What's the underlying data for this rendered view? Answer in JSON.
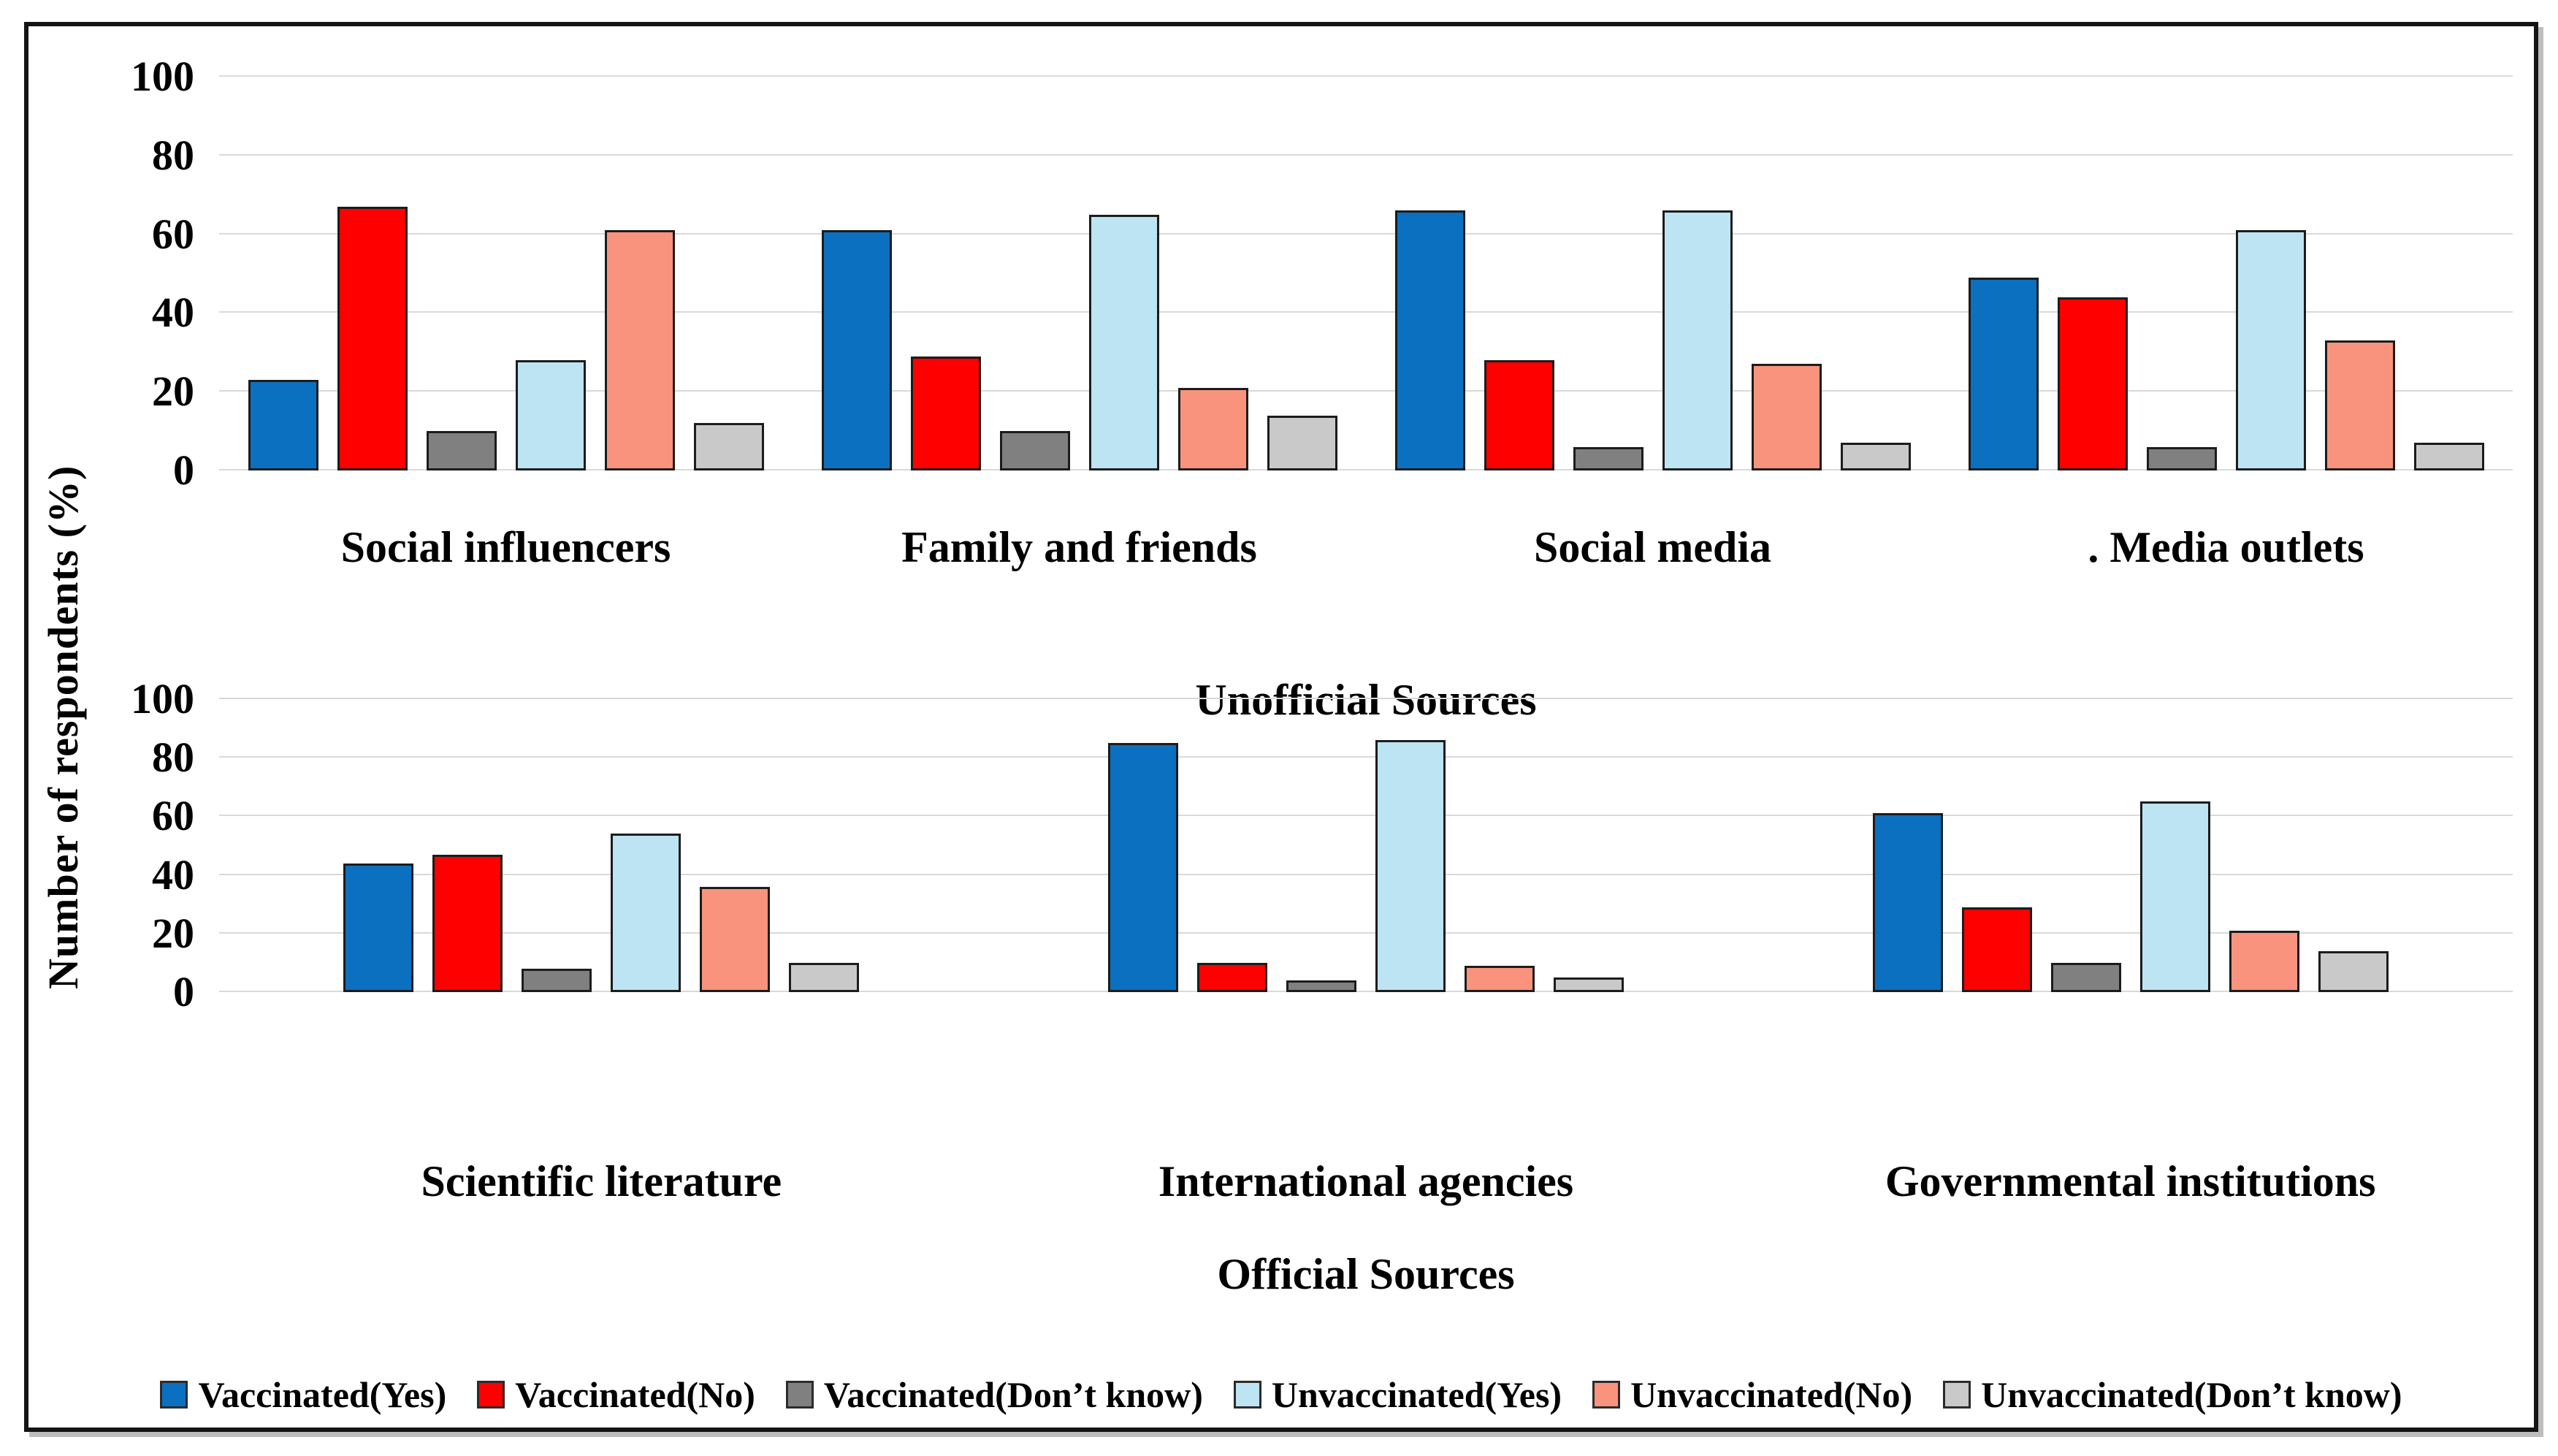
{
  "figure": {
    "ylabel": "Number of respondents (%)"
  },
  "chart_data": [
    {
      "type": "bar",
      "xlabel": "Unofficial Sources",
      "ylabel": "Number of respondents (%)",
      "ylim": [
        0,
        100
      ],
      "yticks": [
        0,
        20,
        40,
        60,
        80,
        100
      ],
      "grid": true,
      "legend_position": "bottom",
      "categories": [
        "Social influencers",
        "Family and friends",
        "Social media",
        ". Media outlets"
      ],
      "series": [
        {
          "name": "Vaccinated(Yes)",
          "color": "#0B70C0",
          "values": [
            23,
            61,
            66,
            49
          ]
        },
        {
          "name": "Vaccinated(No)",
          "color": "#FE0000",
          "values": [
            67,
            29,
            28,
            44
          ]
        },
        {
          "name": "Vaccinated(Don’t know)",
          "color": "#808080",
          "values": [
            10,
            10,
            6,
            6
          ]
        },
        {
          "name": "Unvaccinated(Yes)",
          "color": "#BDE4F2",
          "values": [
            28,
            65,
            66,
            61
          ]
        },
        {
          "name": "Unvaccinated(No)",
          "color": "#F9937E",
          "values": [
            61,
            21,
            27,
            33
          ]
        },
        {
          "name": "Unvaccinated(Don’t know)",
          "color": "#C9C9C9",
          "values": [
            12,
            14,
            7,
            7
          ]
        }
      ]
    },
    {
      "type": "bar",
      "xlabel": "Official Sources",
      "ylabel": "Number of respondents (%)",
      "ylim": [
        0,
        100
      ],
      "yticks": [
        0,
        20,
        40,
        60,
        80,
        100
      ],
      "grid": true,
      "legend_position": "bottom",
      "categories": [
        "Scientific literature",
        "International agencies",
        "Governmental institutions"
      ],
      "series": [
        {
          "name": "Vaccinated(Yes)",
          "color": "#0B70C0",
          "values": [
            44,
            85,
            61
          ]
        },
        {
          "name": "Vaccinated(No)",
          "color": "#FE0000",
          "values": [
            47,
            10,
            29
          ]
        },
        {
          "name": "Vaccinated(Don’t know)",
          "color": "#808080",
          "values": [
            8,
            4,
            10
          ]
        },
        {
          "name": "Unvaccinated(Yes)",
          "color": "#BDE4F2",
          "values": [
            54,
            86,
            65
          ]
        },
        {
          "name": "Unvaccinated(No)",
          "color": "#F9937E",
          "values": [
            36,
            9,
            21
          ]
        },
        {
          "name": "Unvaccinated(Don’t know)",
          "color": "#C9C9C9",
          "values": [
            10,
            5,
            14
          ]
        }
      ]
    }
  ]
}
